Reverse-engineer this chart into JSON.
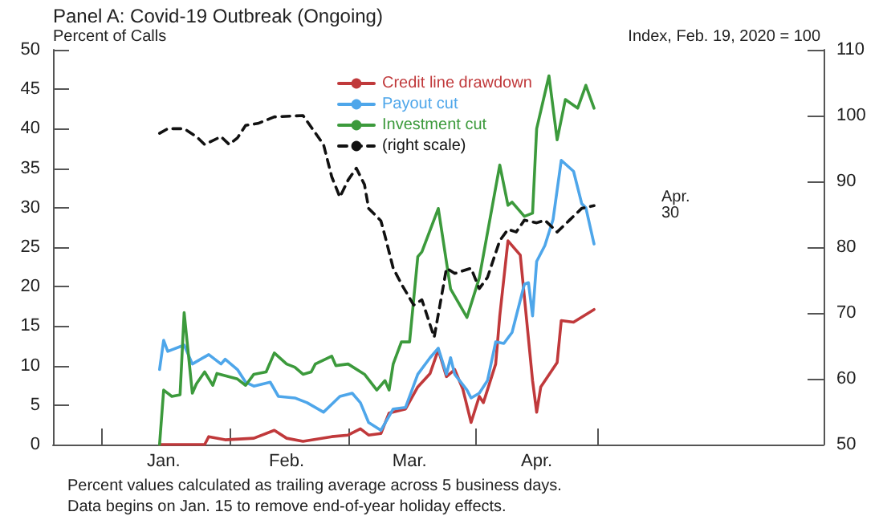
{
  "chart_data": {
    "type": "line",
    "title": "Panel A: Covid-19 Outbreak (Ongoing)",
    "ylabel": "Percent of Calls",
    "y2label": "Index, Feb. 19, 2020 = 100",
    "xlim": [
      "2019-12-20",
      "2020-06-25"
    ],
    "xticks": [
      {
        "value": "2020-01-01",
        "label": null
      },
      {
        "value": "2020-01-16",
        "label": "Jan."
      },
      {
        "value": "2020-02-01",
        "label": null
      },
      {
        "value": "2020-02-15",
        "label": "Feb."
      },
      {
        "value": "2020-03-01",
        "label": null
      },
      {
        "value": "2020-03-16",
        "label": "Mar."
      },
      {
        "value": "2020-04-01",
        "label": null
      },
      {
        "value": "2020-04-16",
        "label": "Apr."
      },
      {
        "value": "2020-05-01",
        "label": null
      }
    ],
    "ylim": [
      0,
      50
    ],
    "yticks": [
      0,
      5,
      10,
      15,
      20,
      25,
      30,
      35,
      40,
      45,
      50
    ],
    "y2lim": [
      50,
      110
    ],
    "y2ticks": [
      50,
      60,
      70,
      80,
      90,
      100,
      110
    ],
    "legend": "top",
    "grid": false,
    "marker": "none",
    "annotations": [
      "Apr. 30",
      "Percent values calculated as trailing average across 5 business days.",
      "Data begins on Jan. 15 to remove end-of-year holiday effects."
    ],
    "series": [
      {
        "name": "Credit line drawdown",
        "color": "#c0393b",
        "line_style": "solid",
        "x": [
          "2020-01-15",
          "2020-01-26",
          "2020-01-27",
          "2020-01-31",
          "2020-02-07",
          "2020-02-12",
          "2020-02-15",
          "2020-02-19",
          "2020-02-26",
          "2020-03-01",
          "2020-03-04",
          "2020-03-06",
          "2020-03-09",
          "2020-03-11",
          "2020-03-15",
          "2020-03-18",
          "2020-03-21",
          "2020-03-23",
          "2020-03-25",
          "2020-03-27",
          "2020-03-29",
          "2020-03-31",
          "2020-04-02",
          "2020-04-03",
          "2020-04-06",
          "2020-04-07",
          "2020-04-09",
          "2020-04-12",
          "2020-04-15",
          "2020-04-16",
          "2020-04-17",
          "2020-04-21",
          "2020-04-22",
          "2020-04-25",
          "2020-04-30"
        ],
        "values": [
          0,
          0,
          1.0,
          0.6,
          0.8,
          1.8,
          0.8,
          0.4,
          1.0,
          1.2,
          2.0,
          1.2,
          1.4,
          4.0,
          4.5,
          7.3,
          9.0,
          12.0,
          8.6,
          9.5,
          7.0,
          2.8,
          6.1,
          5.3,
          10.2,
          16.3,
          25.8,
          24.0,
          8.1,
          4.1,
          7.3,
          10.4,
          15.7,
          15.5,
          17.1
        ]
      },
      {
        "name": "Payout cut",
        "color": "#4ea6ea",
        "line_style": "solid",
        "x": [
          "2020-01-15",
          "2020-01-16",
          "2020-01-17",
          "2020-01-21",
          "2020-01-23",
          "2020-01-27",
          "2020-01-30",
          "2020-01-31",
          "2020-02-03",
          "2020-02-05",
          "2020-02-07",
          "2020-02-11",
          "2020-02-13",
          "2020-02-17",
          "2020-02-20",
          "2020-02-24",
          "2020-02-28",
          "2020-03-02",
          "2020-03-04",
          "2020-03-06",
          "2020-03-09",
          "2020-03-12",
          "2020-03-15",
          "2020-03-18",
          "2020-03-21",
          "2020-03-23",
          "2020-03-25",
          "2020-03-26",
          "2020-03-27",
          "2020-03-30",
          "2020-03-31",
          "2020-04-02",
          "2020-04-04",
          "2020-04-06",
          "2020-04-08",
          "2020-04-10",
          "2020-04-13",
          "2020-04-14",
          "2020-04-15",
          "2020-04-16",
          "2020-04-18",
          "2020-04-20",
          "2020-04-22",
          "2020-04-25",
          "2020-04-27",
          "2020-04-28",
          "2020-04-30"
        ],
        "values": [
          9.5,
          13.2,
          11.8,
          12.6,
          10.2,
          11.4,
          10.2,
          10.8,
          9.5,
          7.9,
          7.4,
          7.9,
          6.1,
          5.9,
          5.3,
          4.1,
          6.1,
          6.5,
          5.3,
          2.8,
          1.8,
          4.5,
          4.7,
          8.9,
          11,
          12.2,
          8.9,
          11,
          8.9,
          6.9,
          5.9,
          6.5,
          8.1,
          13,
          12.8,
          14.2,
          20.3,
          20.5,
          16.3,
          23.2,
          25.2,
          28.5,
          36,
          34.6,
          30.5,
          30,
          25.4
        ]
      },
      {
        "name": "Investment cut",
        "color": "#3c9a3c",
        "line_style": "solid",
        "x": [
          "2020-01-15",
          "2020-01-16",
          "2020-01-18",
          "2020-01-20",
          "2020-01-21",
          "2020-01-23",
          "2020-01-24",
          "2020-01-26",
          "2020-01-28",
          "2020-01-29",
          "2020-02-03",
          "2020-02-05",
          "2020-02-07",
          "2020-02-10",
          "2020-02-12",
          "2020-02-15",
          "2020-02-17",
          "2020-02-19",
          "2020-02-21",
          "2020-02-22",
          "2020-02-26",
          "2020-02-27",
          "2020-03-01",
          "2020-03-05",
          "2020-03-08",
          "2020-03-10",
          "2020-03-11",
          "2020-03-12",
          "2020-03-14",
          "2020-03-16",
          "2020-03-18",
          "2020-03-19",
          "2020-03-23",
          "2020-03-26",
          "2020-03-30",
          "2020-04-02",
          "2020-04-07",
          "2020-04-09",
          "2020-04-10",
          "2020-04-13",
          "2020-04-15",
          "2020-04-16",
          "2020-04-19",
          "2020-04-21",
          "2020-04-23",
          "2020-04-26",
          "2020-04-28",
          "2020-04-30"
        ],
        "values": [
          0,
          6.9,
          6.1,
          6.3,
          16.7,
          6.5,
          7.7,
          9.2,
          7.5,
          9,
          8.3,
          7.5,
          8.9,
          9.2,
          11.6,
          10.2,
          9.8,
          8.9,
          9.2,
          10.2,
          11.2,
          10,
          10.2,
          8.9,
          6.9,
          8.1,
          6.9,
          10.2,
          13,
          13,
          23.8,
          24.4,
          29.9,
          19.7,
          16.1,
          21.1,
          35.4,
          30.3,
          30.7,
          28.9,
          29.3,
          40,
          46.7,
          38.6,
          43.7,
          42.6,
          45.5,
          42.6
        ]
      },
      {
        "name": "(right scale)",
        "color": "#111111",
        "line_style": "dashed",
        "axis": "y2",
        "x": [
          "2020-01-15",
          "2020-01-17",
          "2020-01-21",
          "2020-01-24",
          "2020-01-26",
          "2020-01-30",
          "2020-02-01",
          "2020-02-03",
          "2020-02-05",
          "2020-02-08",
          "2020-02-12",
          "2020-02-19",
          "2020-02-24",
          "2020-02-26",
          "2020-02-28",
          "2020-03-01",
          "2020-03-03",
          "2020-03-05",
          "2020-03-06",
          "2020-03-09",
          "2020-03-10",
          "2020-03-12",
          "2020-03-14",
          "2020-03-17",
          "2020-03-19",
          "2020-03-22",
          "2020-03-25",
          "2020-03-27",
          "2020-03-31",
          "2020-04-02",
          "2020-04-04",
          "2020-04-07",
          "2020-04-09",
          "2020-04-11",
          "2020-04-13",
          "2020-04-16",
          "2020-04-18",
          "2020-04-21",
          "2020-04-24",
          "2020-04-27",
          "2020-04-30"
        ],
        "values": [
          97.3,
          98,
          98,
          96.8,
          95.6,
          96.8,
          95.6,
          96.6,
          98.5,
          98.8,
          99.8,
          100,
          95.6,
          90.7,
          87.6,
          90.2,
          92,
          89.5,
          85.9,
          84,
          81.7,
          76.8,
          74.4,
          71.2,
          72,
          66.3,
          76.8,
          76,
          76.8,
          73.7,
          75.4,
          81,
          82.7,
          82.3,
          84.1,
          83.7,
          84.1,
          82.3,
          84.1,
          85.9,
          86.3
        ]
      }
    ]
  }
}
